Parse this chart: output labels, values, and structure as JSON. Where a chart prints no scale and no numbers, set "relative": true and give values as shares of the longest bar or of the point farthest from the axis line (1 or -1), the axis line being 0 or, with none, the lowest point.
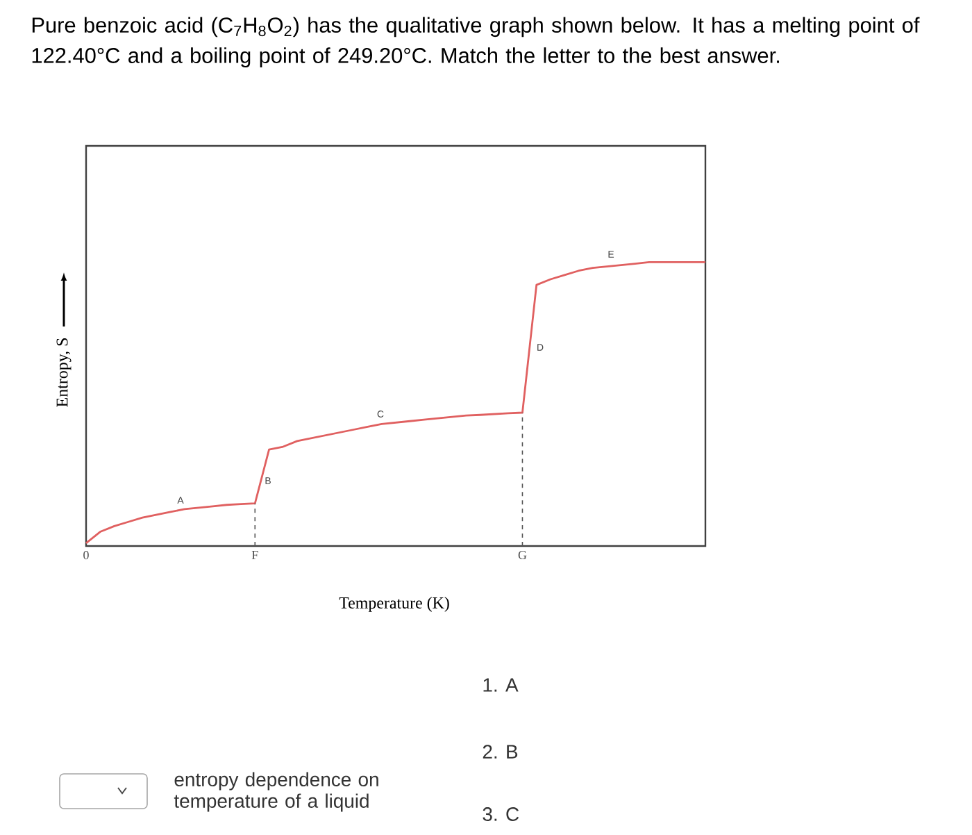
{
  "chart_data": {
    "type": "line",
    "relative": true,
    "title": "Pure benzoic acid (C$_{7}$H$_{8}$O$_{2}$) has the qualitative graph shown below.  It has a melting point of 122.40°C and a boiling point of 249.20°C. Match the letter to the best answer.",
    "xlabel": "Temperature (K)",
    "ylabel": "Entropy, S",
    "categories": [
      "0",
      null,
      null,
      null,
      null,
      null,
      null,
      null,
      null,
      null,
      null,
      null,
      "F",
      null,
      null,
      null,
      null,
      null,
      null,
      null,
      null,
      null,
      null,
      null,
      null,
      null,
      null,
      null,
      null,
      null,
      null,
      "G",
      null,
      null,
      null,
      null,
      null,
      null,
      null,
      null,
      null,
      null,
      null,
      null,
      null
    ],
    "marker": "none",
    "line_style": "solid",
    "series": [
      {
        "color": "#e06060",
        "values": [
          0.01,
          0.05,
          0.07,
          0.085,
          0.1,
          0.11,
          0.12,
          0.13,
          0.135,
          0.14,
          0.145,
          0.148,
          0.15,
          0.34,
          0.35,
          0.37,
          0.38,
          0.39,
          0.4,
          0.41,
          0.42,
          0.43,
          0.435,
          0.44,
          0.445,
          0.45,
          0.455,
          0.46,
          0.462,
          0.465,
          0.468,
          0.47,
          0.92,
          0.94,
          0.955,
          0.97,
          0.98,
          0.985,
          0.99,
          0.995,
          1,
          1,
          1,
          1,
          1
        ]
      }
    ],
    "ref_lines": [
      {
        "axis": "x",
        "value": "F",
        "color": "#555555",
        "line_style": "dashed"
      },
      {
        "axis": "x",
        "value": "G",
        "color": "#555555",
        "line_style": "dashed"
      }
    ],
    "annotations": [
      "A",
      "B",
      "C",
      "D",
      "E",
      "1. A",
      "2. B",
      "3. C",
      "entropy dependence on temperature of a liquid"
    ]
  }
}
